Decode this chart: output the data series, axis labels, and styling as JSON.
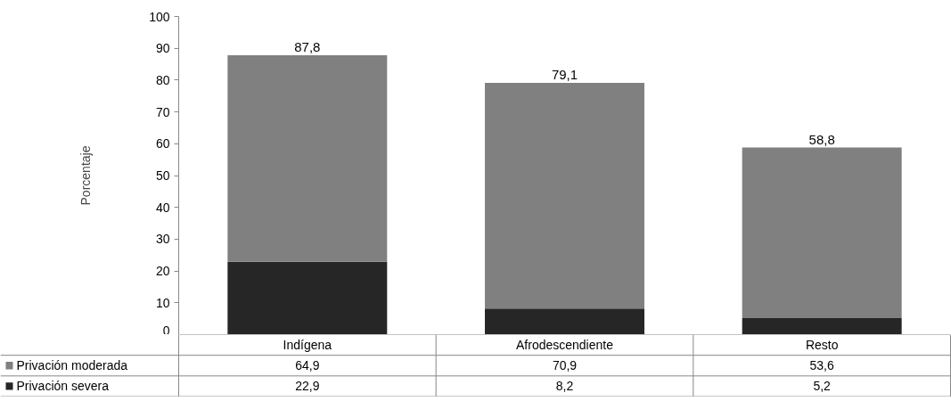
{
  "chart_data": {
    "type": "bar",
    "stacked": true,
    "ylabel": "Porcentaje",
    "categories": [
      "Indígena",
      "Afrodescendiente",
      "Resto"
    ],
    "series": [
      {
        "name": "Privación severa",
        "color": "#262626",
        "values": [
          22.9,
          8.2,
          5.2
        ],
        "value_labels": [
          "22,9",
          "8,2",
          "5,2"
        ]
      },
      {
        "name": "Privación moderada",
        "color": "#808080",
        "values": [
          64.9,
          70.9,
          53.6
        ],
        "value_labels": [
          "64,9",
          "70,9",
          "53,6"
        ]
      }
    ],
    "totals": [
      "87,8",
      "79,1",
      "58,8"
    ],
    "ylim": [
      0,
      100
    ],
    "yticks": [
      0,
      10,
      20,
      30,
      40,
      50,
      60,
      70,
      80,
      90,
      100
    ],
    "grid": false,
    "legend": "bottom"
  }
}
